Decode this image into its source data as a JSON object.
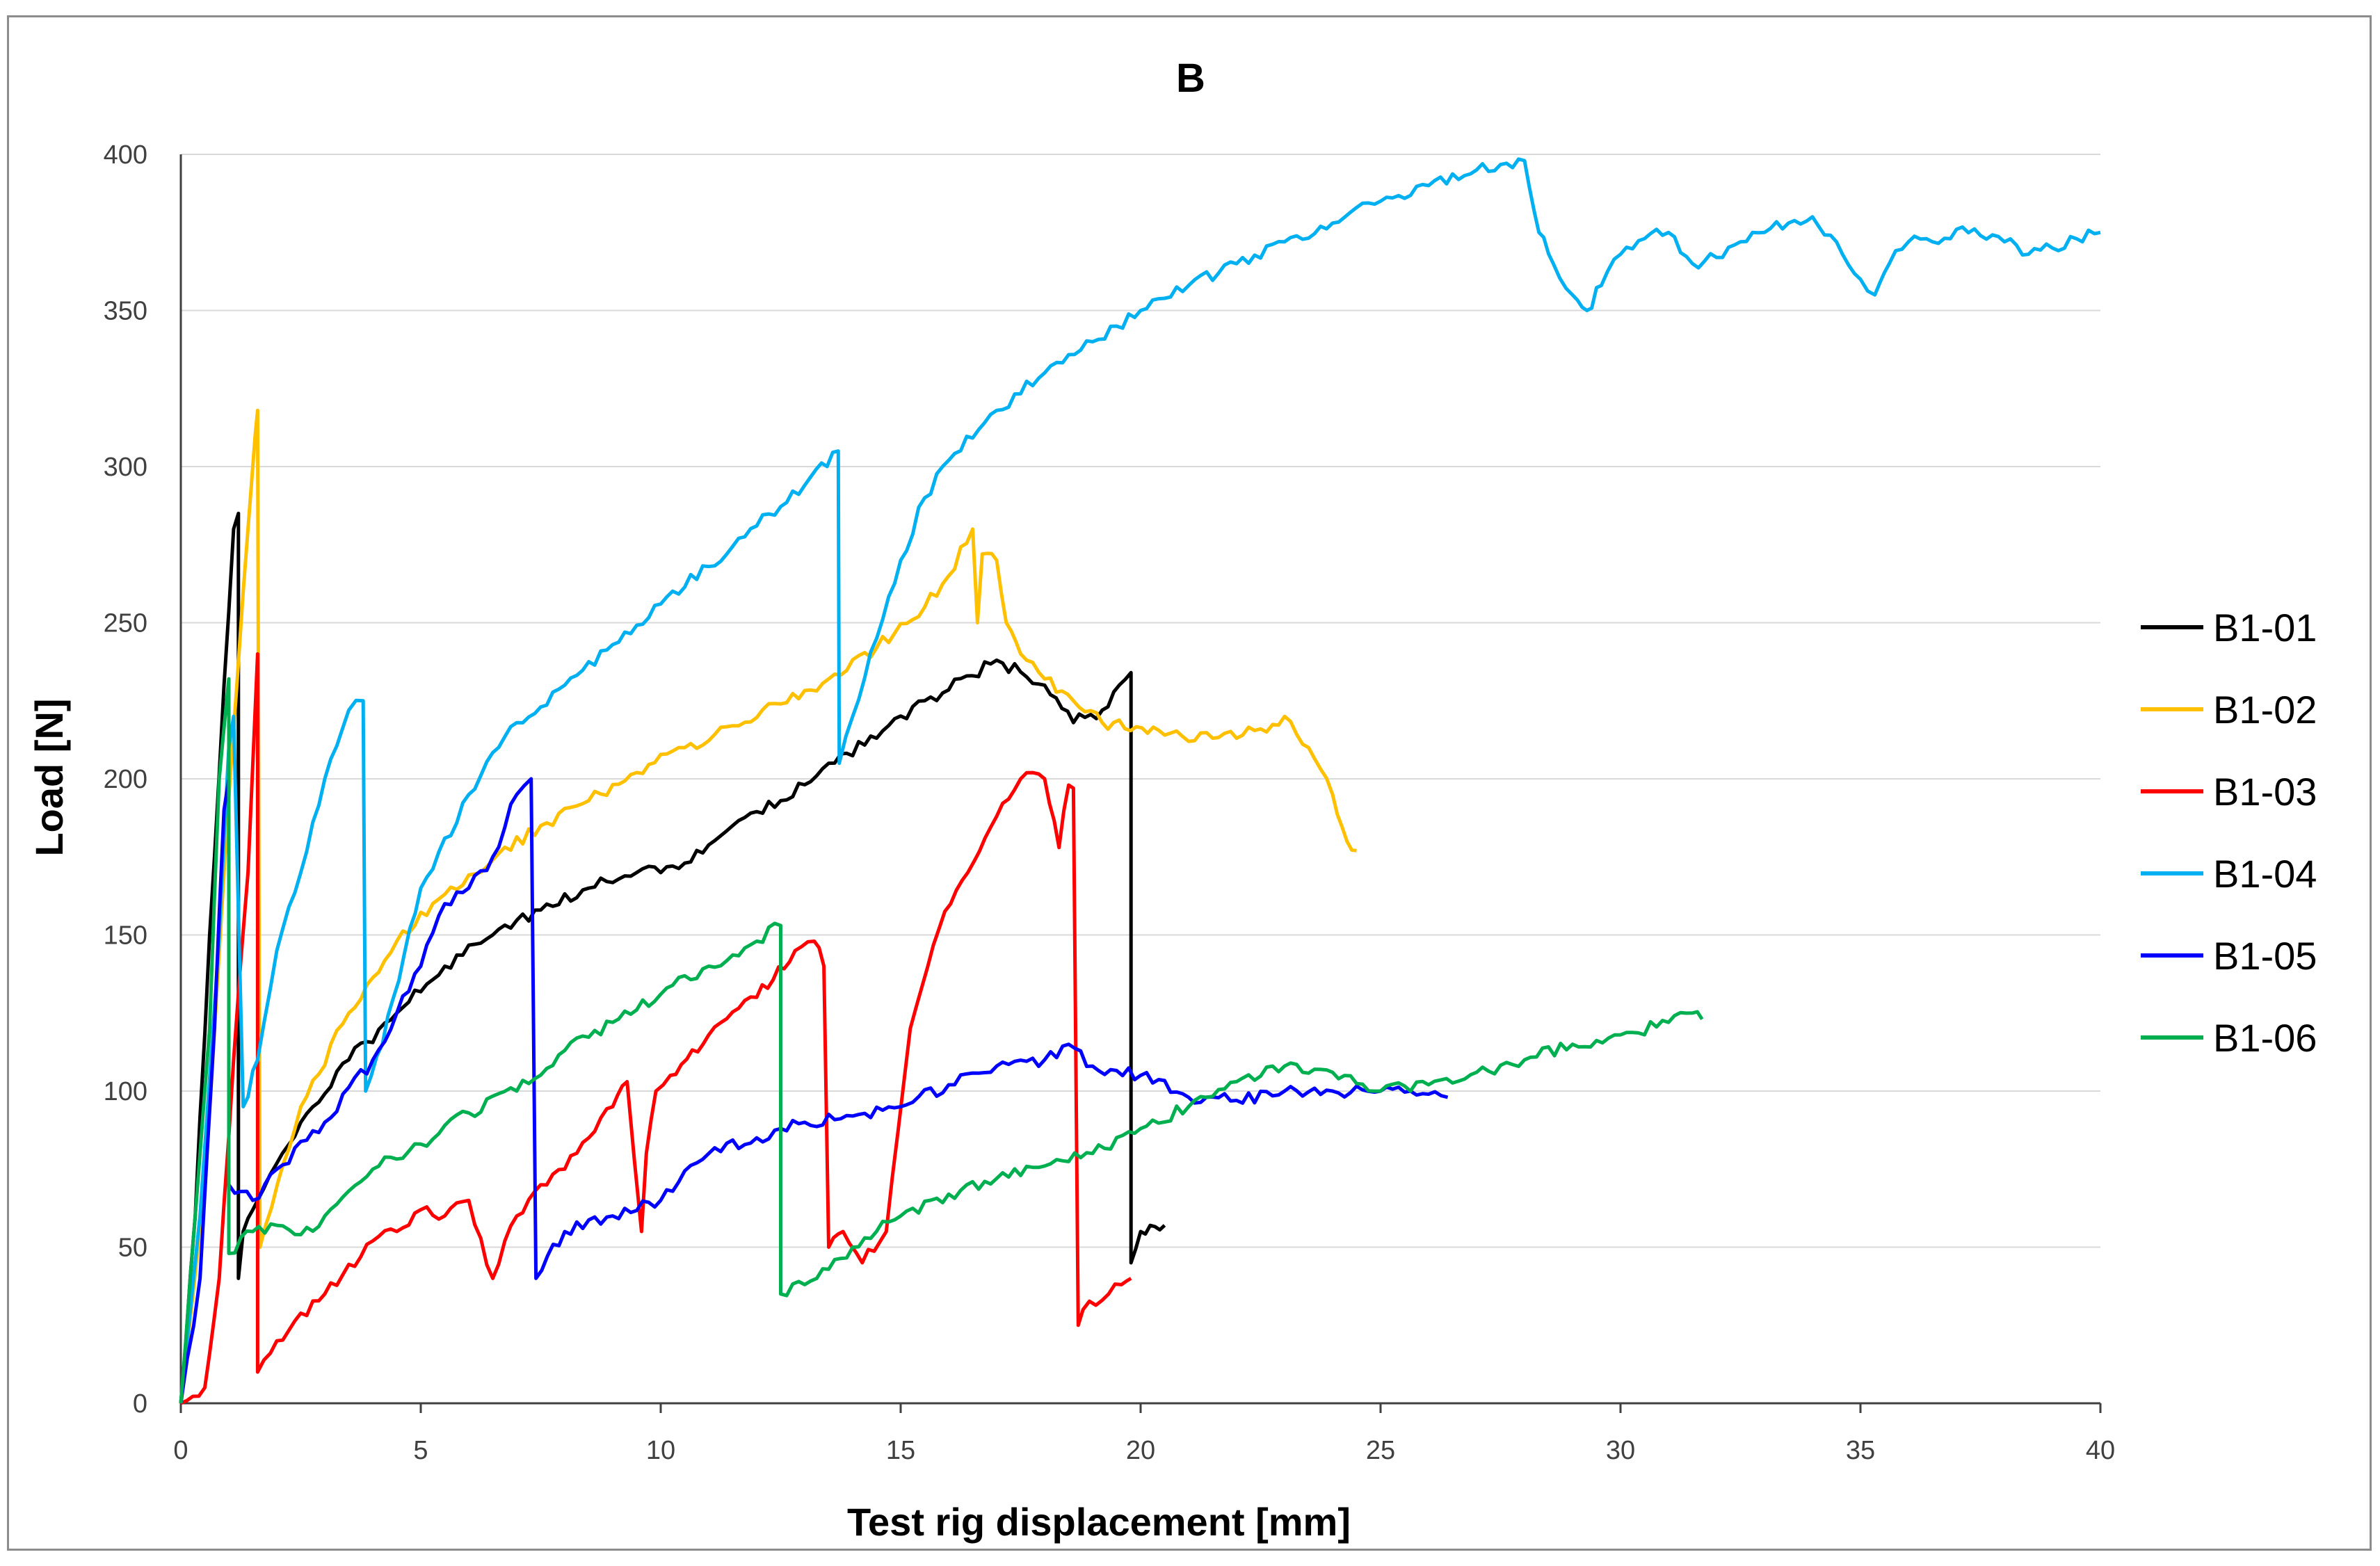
{
  "chart_data": {
    "type": "line",
    "title": "B",
    "xlabel": "Test rig displacement [mm]",
    "ylabel": "Load [N]",
    "xlim": [
      0,
      40
    ],
    "ylim": [
      0,
      400
    ],
    "xticks": [
      0,
      5,
      10,
      15,
      20,
      25,
      30,
      35,
      40
    ],
    "yticks": [
      0,
      50,
      100,
      150,
      200,
      250,
      300,
      350,
      400
    ],
    "grid": "horizontal",
    "legend_position": "right",
    "series": [
      {
        "name": "B1-01",
        "color": "#000000",
        "x": [
          0,
          0.3,
          0.6,
          0.9,
          1.1,
          1.2,
          1.2,
          1.3,
          1.6,
          2.5,
          3.5,
          4.5,
          5.5,
          6.5,
          7.5,
          8.5,
          9.5,
          10.5,
          11.5,
          12.5,
          13.5,
          14.5,
          15.5,
          16.5,
          17.0,
          18.0,
          18.6,
          19.2,
          19.8,
          19.8,
          20.0,
          20.2,
          20.5
        ],
        "y": [
          0,
          60,
          150,
          230,
          280,
          285,
          40,
          55,
          65,
          90,
          110,
          125,
          140,
          150,
          158,
          165,
          170,
          173,
          185,
          193,
          205,
          213,
          225,
          233,
          238,
          230,
          218,
          222,
          234,
          45,
          55,
          57,
          57
        ]
      },
      {
        "name": "B1-02",
        "color": "#FFC000",
        "x": [
          0,
          0.5,
          0.9,
          1.3,
          1.55,
          1.6,
          1.65,
          2.5,
          3.5,
          4.5,
          5.5,
          6.5,
          7.5,
          8.5,
          9.5,
          10.5,
          11.5,
          12.5,
          13.5,
          14.5,
          15.5,
          16.0,
          16.5,
          16.6,
          16.7,
          17.0,
          17.2,
          17.5,
          18.0,
          18.6,
          19.2,
          20.5,
          21.5,
          22.5,
          23.0,
          23.5,
          24.0,
          24.3,
          24.5
        ],
        "y": [
          0,
          70,
          170,
          260,
          310,
          318,
          50,
          95,
          125,
          148,
          163,
          174,
          185,
          193,
          202,
          210,
          217,
          224,
          232,
          242,
          255,
          265,
          280,
          250,
          272,
          270,
          250,
          240,
          232,
          225,
          218,
          214,
          213,
          216,
          220,
          210,
          195,
          180,
          177
        ]
      },
      {
        "name": "B1-03",
        "color": "#FF0000",
        "x": [
          0,
          0.5,
          0.8,
          1.1,
          1.4,
          1.6,
          1.6,
          2.0,
          3.0,
          4.0,
          4.5,
          5.0,
          5.5,
          6.0,
          6.5,
          7.0,
          7.5,
          8.0,
          8.5,
          9.0,
          9.3,
          9.6,
          9.7,
          9.9,
          10.2,
          11.0,
          12.0,
          12.8,
          13.2,
          13.4,
          13.5,
          13.8,
          14.2,
          14.7,
          15.2,
          15.8,
          16.4,
          17.0,
          17.5,
          18.0,
          18.3,
          18.5,
          18.6,
          18.7,
          18.8,
          19.2,
          19.6,
          19.8
        ],
        "y": [
          0,
          5,
          40,
          110,
          170,
          240,
          10,
          20,
          35,
          52,
          55,
          62,
          60,
          65,
          40,
          60,
          70,
          75,
          85,
          95,
          103,
          55,
          80,
          100,
          105,
          118,
          130,
          145,
          148,
          140,
          50,
          55,
          45,
          55,
          120,
          152,
          170,
          188,
          200,
          200,
          178,
          198,
          197,
          25,
          30,
          33,
          38,
          40
        ]
      },
      {
        "name": "B1-04",
        "color": "#00B0F0",
        "x": [
          0,
          0.4,
          0.8,
          1.0,
          1.1,
          1.3,
          1.6,
          2.0,
          2.5,
          3.0,
          3.5,
          3.8,
          3.85,
          4.2,
          5.0,
          6.0,
          7.0,
          8.0,
          9.0,
          10.0,
          11.0,
          12.0,
          13.0,
          13.7,
          13.72,
          14.0,
          14.5,
          15.0,
          15.5,
          16.0,
          17.0,
          18.0,
          19.0,
          20.0,
          21.0,
          22.0,
          23.0,
          24.0,
          25.0,
          26.0,
          27.0,
          28.0,
          28.3,
          28.6,
          29.0,
          29.3,
          29.6,
          30.0,
          30.5,
          31.0,
          31.5,
          32.0,
          32.5,
          33.0,
          33.5,
          34.0,
          34.5,
          35.0,
          35.3,
          35.6,
          36.0,
          36.5,
          37.0,
          37.5,
          38.0,
          38.5,
          39.0,
          39.5,
          40.0
        ],
        "y": [
          0,
          60,
          150,
          210,
          220,
          95,
          110,
          145,
          170,
          200,
          222,
          225,
          100,
          115,
          165,
          195,
          218,
          230,
          243,
          256,
          268,
          281,
          294,
          305,
          205,
          220,
          245,
          270,
          290,
          302,
          318,
          330,
          340,
          350,
          358,
          365,
          372,
          378,
          385,
          390,
          395,
          398,
          375,
          365,
          355,
          350,
          358,
          368,
          373,
          375,
          365,
          367,
          372,
          375,
          378,
          380,
          372,
          360,
          355,
          365,
          372,
          372,
          376,
          374,
          372,
          368,
          370,
          373,
          375
        ]
      },
      {
        "name": "B1-05",
        "color": "#0000FF",
        "x": [
          0,
          0.4,
          0.7,
          0.9,
          1.0,
          1.0,
          1.5,
          2.0,
          3.0,
          4.0,
          5.0,
          5.5,
          6.0,
          6.5,
          7.0,
          7.3,
          7.4,
          8.0,
          9.0,
          10.0,
          11.0,
          12.0,
          13.0,
          14.0,
          15.0,
          16.0,
          17.0,
          18.0,
          18.5,
          19.0,
          20.0,
          21.0,
          22.0,
          23.0,
          24.0,
          25.0,
          26.0,
          26.4
        ],
        "y": [
          0,
          40,
          120,
          190,
          200,
          70,
          65,
          75,
          90,
          110,
          140,
          160,
          165,
          175,
          195,
          200,
          40,
          55,
          60,
          65,
          80,
          85,
          90,
          92,
          95,
          102,
          108,
          110,
          115,
          108,
          105,
          98,
          97,
          100,
          100,
          100,
          99,
          98
        ]
      },
      {
        "name": "B1-06",
        "color": "#00B050",
        "x": [
          0,
          0.3,
          0.6,
          0.8,
          1.0,
          1.0,
          1.5,
          2.0,
          2.5,
          3.0,
          3.5,
          4.0,
          5.0,
          6.0,
          7.0,
          8.0,
          9.0,
          10.0,
          11.0,
          12.0,
          12.5,
          12.5,
          13.0,
          14.0,
          15.0,
          16.0,
          17.0,
          18.0,
          19.0,
          20.0,
          21.0,
          22.0,
          23.0,
          24.0,
          25.0,
          26.0,
          27.0,
          28.0,
          29.0,
          30.0,
          31.0,
          31.5,
          31.7
        ],
        "y": [
          0,
          60,
          120,
          200,
          232,
          48,
          55,
          57,
          54,
          60,
          68,
          75,
          83,
          93,
          100,
          113,
          122,
          131,
          140,
          148,
          153,
          35,
          38,
          50,
          60,
          67,
          72,
          76,
          80,
          88,
          95,
          103,
          108,
          106,
          100,
          102,
          106,
          110,
          115,
          118,
          122,
          125,
          123
        ]
      }
    ]
  }
}
